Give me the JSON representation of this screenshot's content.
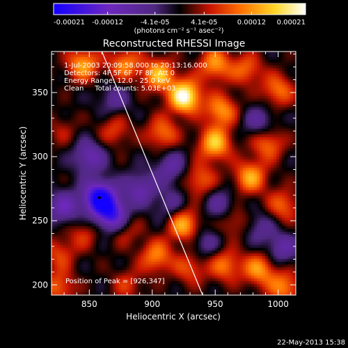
{
  "chart_data": {
    "type": "heatmap",
    "title": "Reconstructed RHESSI Image",
    "xlabel": "Heliocentric X (arcsec)",
    "ylabel": "Heliocentric Y (arcsec)",
    "xlim": [
      820,
      1014
    ],
    "ylim": [
      192,
      382
    ],
    "x_ticks": [
      850,
      900,
      950,
      1000
    ],
    "y_ticks": [
      200,
      250,
      300,
      350
    ],
    "colorbar": {
      "range": [
        -0.00021,
        0.00021
      ],
      "ticks": [
        "-0.00021",
        "-0.00012",
        "-4.1e-05",
        "4.1e-05",
        "0.00012",
        "0.00021"
      ],
      "tick_values": [
        -0.00021,
        -0.00012,
        -4.1e-05,
        4.1e-05,
        0.00012,
        0.00021
      ],
      "unit_label": "(photons cm⁻² s⁻¹ asec⁻²)"
    },
    "annotations": [
      "1-Jul-2003 20:09:58.000 to 20:13:16.000",
      "Detectors: 4F 5F 6F 7F 8F, Att 0",
      "Energy Range: 12.0 - 25.0 keV",
      "Clean     Total counts: 5.03E+03"
    ],
    "peak_label": "Position of Peak = [926,347]",
    "limb_points": [
      [
        860,
        382
      ],
      [
        940,
        192
      ]
    ],
    "sources": [
      {
        "x": 845,
        "y": 372,
        "value": 0.00013
      },
      {
        "x": 878,
        "y": 372,
        "value": 0.00011
      },
      {
        "x": 905,
        "y": 364,
        "value": 0.00014
      },
      {
        "x": 926,
        "y": 347,
        "value": 0.00021
      },
      {
        "x": 950,
        "y": 372,
        "value": 0.00012
      },
      {
        "x": 975,
        "y": 368,
        "value": 9e-05
      },
      {
        "x": 1000,
        "y": 352,
        "value": 0.0001
      },
      {
        "x": 955,
        "y": 336,
        "value": 0.00012
      },
      {
        "x": 950,
        "y": 310,
        "value": 0.00015
      },
      {
        "x": 992,
        "y": 310,
        "value": 0.0001
      },
      {
        "x": 908,
        "y": 318,
        "value": 0.0001
      },
      {
        "x": 870,
        "y": 320,
        "value": 7e-05
      },
      {
        "x": 938,
        "y": 282,
        "value": 9e-05
      },
      {
        "x": 978,
        "y": 284,
        "value": 0.00013
      },
      {
        "x": 1004,
        "y": 262,
        "value": 9e-05
      },
      {
        "x": 965,
        "y": 250,
        "value": 7e-05
      },
      {
        "x": 925,
        "y": 247,
        "value": 0.00014
      },
      {
        "x": 878,
        "y": 243,
        "value": 6e-05
      },
      {
        "x": 845,
        "y": 240,
        "value": 6e-05
      },
      {
        "x": 903,
        "y": 222,
        "value": 0.00011
      },
      {
        "x": 930,
        "y": 213,
        "value": 8e-05
      },
      {
        "x": 958,
        "y": 215,
        "value": 0.0001
      },
      {
        "x": 985,
        "y": 212,
        "value": 0.00012
      },
      {
        "x": 1005,
        "y": 198,
        "value": 0.00011
      },
      {
        "x": 826,
        "y": 224,
        "value": 7e-05
      },
      {
        "x": 826,
        "y": 198,
        "value": 9e-05
      },
      {
        "x": 880,
        "y": 200,
        "value": 6e-05
      },
      {
        "x": 828,
        "y": 320,
        "value": 4e-05
      },
      {
        "x": 858,
        "y": 268,
        "value": -0.00021
      },
      {
        "x": 868,
        "y": 254,
        "value": -0.00016
      },
      {
        "x": 850,
        "y": 300,
        "value": -0.0001
      },
      {
        "x": 830,
        "y": 260,
        "value": -0.0001
      },
      {
        "x": 890,
        "y": 275,
        "value": -9e-05
      },
      {
        "x": 915,
        "y": 292,
        "value": -8e-05
      },
      {
        "x": 985,
        "y": 327,
        "value": -7e-05
      },
      {
        "x": 1003,
        "y": 228,
        "value": -8e-05
      },
      {
        "x": 955,
        "y": 262,
        "value": -7e-05
      },
      {
        "x": 870,
        "y": 345,
        "value": -6e-05
      },
      {
        "x": 942,
        "y": 232,
        "value": -6e-05
      },
      {
        "x": 985,
        "y": 245,
        "value": -6e-05
      },
      {
        "x": 915,
        "y": 262,
        "value": -6e-05
      }
    ]
  },
  "footer": {
    "timestamp": "22-May-2013 15:38"
  }
}
